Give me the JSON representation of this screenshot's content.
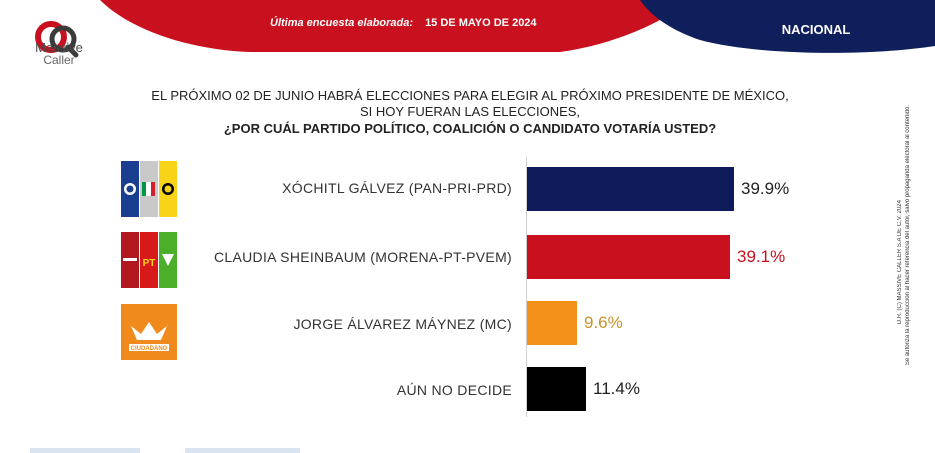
{
  "header": {
    "brand_line1": "Massive",
    "brand_line2": "Caller",
    "survey_label": "Última encuesta elaborada:",
    "survey_date": "15 DE MAYO DE 2024",
    "scope": "NACIONAL",
    "colors": {
      "red": "#c8101e",
      "navy": "#0f1f5c"
    }
  },
  "question": {
    "line1": "EL PRÓXIMO 02 DE JUNIO HABRÁ ELECCIONES PARA ELEGIR AL PRÓXIMO PRESIDENTE DE MÉXICO,",
    "line2": "SI HOY FUERAN LAS ELECCIONES,",
    "line3": "¿POR CUÁL PARTIDO POLÍTICO, COALICIÓN O CANDIDATO VOTARÍA USTED?"
  },
  "badges": {
    "pt": "PT",
    "mc_label": "CIUDADANO",
    "icons": [
      "pan-pri-prd-logos",
      "morena-pt-pvem-logos",
      "movimiento-ciudadano-logo"
    ]
  },
  "chart_data": {
    "type": "bar",
    "orientation": "horizontal",
    "categories": [
      "XÓCHITL GÁLVEZ (PAN-PRI-PRD)",
      "CLAUDIA SHEINBAUM (MORENA-PT-PVEM)",
      "JORGE ÁLVAREZ MÁYNEZ (MC)",
      "AÚN NO DECIDE"
    ],
    "values": [
      39.9,
      39.1,
      9.6,
      11.4
    ],
    "value_labels": [
      "39.9%",
      "39.1%",
      "9.6%",
      "11.4%"
    ],
    "bar_colors": [
      "#0f1a5a",
      "#c8101e",
      "#f39019",
      "#000000"
    ],
    "label_colors": [
      "#222222",
      "#c8101e",
      "#c9922a",
      "#222222"
    ],
    "xlim": [
      0,
      40
    ],
    "grid": false,
    "legend": "none"
  },
  "disclaimer": {
    "line1": "D.R. (C) MASSIVE CALLER S.A DE C.V. 2024",
    "line2": "Se autoriza la reproducción al hacer referencia del autor, salvo propaganda electoral al contenido."
  }
}
